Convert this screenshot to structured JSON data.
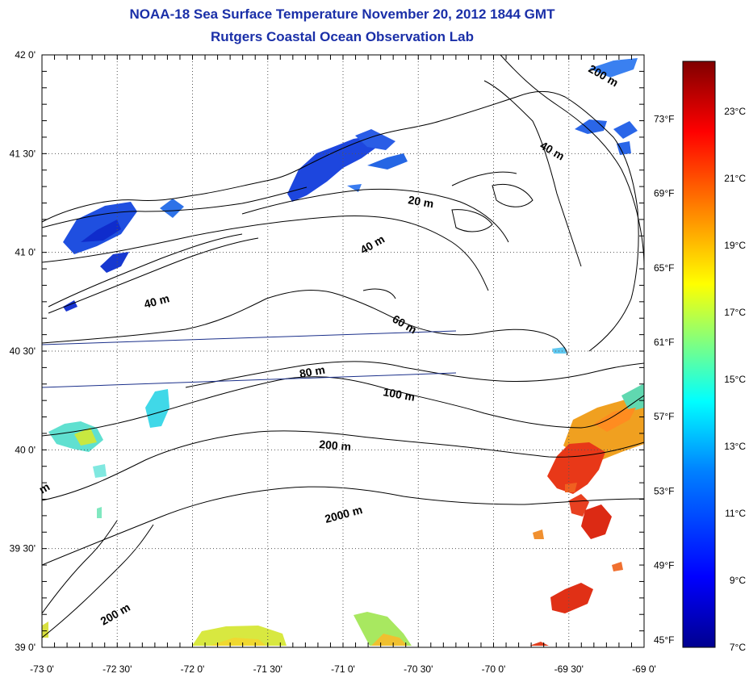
{
  "title": "NOAA-18 Sea Surface Temperature November 20, 2012 1844 GMT",
  "subtitle": "Rutgers Coastal Ocean Observation Lab",
  "map": {
    "lon_range": [
      -73.0,
      -69.0
    ],
    "lat_range": [
      39.0,
      42.0
    ],
    "grid": "dotted",
    "lon_ticks": [
      {
        "value": -73.0,
        "label": "-73 0'"
      },
      {
        "value": -72.5,
        "label": "-72 30'"
      },
      {
        "value": -72.0,
        "label": "-72 0'"
      },
      {
        "value": -71.5,
        "label": "-71 30'"
      },
      {
        "value": -71.0,
        "label": "-71 0'"
      },
      {
        "value": -70.5,
        "label": "-70 30'"
      },
      {
        "value": -70.0,
        "label": "-70 0'"
      },
      {
        "value": -69.5,
        "label": "-69 30'"
      },
      {
        "value": -69.0,
        "label": "-69 0'"
      }
    ],
    "lat_ticks": [
      {
        "value": 42.0,
        "label": "42 0'"
      },
      {
        "value": 41.5,
        "label": "41 30'"
      },
      {
        "value": 41.0,
        "label": "41 0'"
      },
      {
        "value": 40.5,
        "label": "40 30'"
      },
      {
        "value": 40.0,
        "label": "40 0'"
      },
      {
        "value": 39.5,
        "label": "39 30'"
      },
      {
        "value": 39.0,
        "label": "39 0'"
      }
    ],
    "depth_labels": [
      "200 m",
      "40 m",
      "20 m",
      "40 m",
      "40 m",
      "60 m",
      "80 m",
      "100 m",
      "200 m",
      "2000 m",
      "200 m",
      "m"
    ],
    "colors": {
      "coast": "#000000",
      "transect": "#1a2f8a",
      "land": "#ffffff"
    }
  },
  "colorbar": {
    "celsius_range": [
      7,
      24.5
    ],
    "celsius_labels": [
      {
        "value": 23,
        "label": "23°C"
      },
      {
        "value": 21,
        "label": "21°C"
      },
      {
        "value": 19,
        "label": "19°C"
      },
      {
        "value": 17,
        "label": "17°C"
      },
      {
        "value": 15,
        "label": "15°C"
      },
      {
        "value": 13,
        "label": "13°C"
      },
      {
        "value": 11,
        "label": "11°C"
      },
      {
        "value": 9,
        "label": "9°C"
      },
      {
        "value": 7,
        "label": "7°C"
      }
    ],
    "fahrenheit_labels": [
      {
        "value": 73,
        "label": "73°F"
      },
      {
        "value": 69,
        "label": "69°F"
      },
      {
        "value": 65,
        "label": "65°F"
      },
      {
        "value": 61,
        "label": "61°F"
      },
      {
        "value": 57,
        "label": "57°F"
      },
      {
        "value": 53,
        "label": "53°F"
      },
      {
        "value": 49,
        "label": "49°F"
      },
      {
        "value": 45,
        "label": "45°F"
      }
    ],
    "stops": [
      "#00008f",
      "#0000ff",
      "#0080ff",
      "#00ffff",
      "#80ff80",
      "#ffff00",
      "#ff8000",
      "#ff0000",
      "#800000"
    ]
  }
}
